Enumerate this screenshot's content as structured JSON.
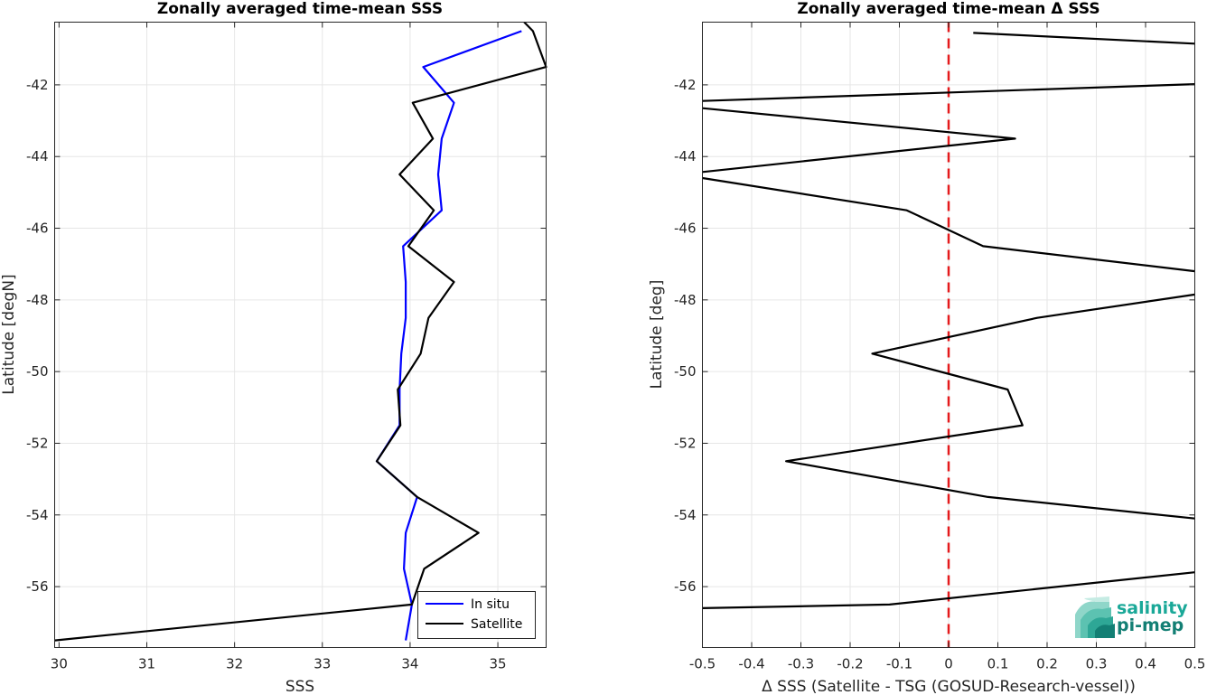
{
  "chart_data": [
    {
      "type": "line",
      "title": "Zonally averaged time-mean SSS",
      "xlabel": "SSS",
      "ylabel": "Latitude [degN]",
      "xlim": [
        29.95,
        35.55
      ],
      "ylim": [
        -57.7,
        -40.25
      ],
      "xticks": [
        30,
        31,
        32,
        33,
        34,
        35
      ],
      "yticks": [
        -56,
        -54,
        -52,
        -50,
        -48,
        -46,
        -44,
        -42
      ],
      "grid": true,
      "legend": "bottom-right",
      "series": [
        {
          "name": "In situ",
          "color": "#0000ff",
          "x": [
            33.95,
            34.02,
            33.93,
            33.95,
            34.08,
            33.62,
            33.88,
            33.88,
            33.9,
            33.95,
            33.95,
            33.92,
            34.36,
            34.32,
            34.36,
            34.5,
            34.15,
            35.27
          ],
          "y": [
            -57.5,
            -56.5,
            -55.5,
            -54.5,
            -53.5,
            -52.5,
            -51.5,
            -50.5,
            -49.5,
            -48.5,
            -47.5,
            -46.5,
            -45.5,
            -44.5,
            -43.5,
            -42.5,
            -41.5,
            -40.5
          ]
        },
        {
          "name": "Satellite",
          "color": "#000000",
          "x": [
            29.95,
            34.02,
            34.16,
            34.78,
            34.08,
            33.62,
            33.89,
            33.86,
            34.12,
            34.21,
            34.5,
            33.98,
            34.27,
            33.88,
            34.26,
            34.03,
            35.55,
            35.4,
            35.3
          ],
          "y": [
            -57.5,
            -56.5,
            -55.5,
            -54.5,
            -53.5,
            -52.5,
            -51.5,
            -50.5,
            -49.5,
            -48.5,
            -47.5,
            -46.5,
            -45.5,
            -44.5,
            -43.5,
            -42.5,
            -41.5,
            -40.5,
            -40.25
          ]
        }
      ]
    },
    {
      "type": "line",
      "title": "Zonally averaged time-mean Δ SSS",
      "xlabel": "Δ SSS (Satellite - TSG (GOSUD-Research-vessel))",
      "ylabel": "Latitude [deg]",
      "xlim": [
        -0.5,
        0.5
      ],
      "ylim": [
        -57.7,
        -40.25
      ],
      "xticks": [
        -0.5,
        -0.4,
        -0.3,
        -0.2,
        -0.1,
        0,
        0.1,
        0.2,
        0.3,
        0.4,
        0.5
      ],
      "xticklabels": [
        "-0.5",
        "-0.4",
        "-0.3",
        "-0.2",
        "-0.1",
        "0",
        "0.1",
        "0.2",
        "0.3",
        "0.4",
        "0.5"
      ],
      "yticks": [
        -56,
        -54,
        -52,
        -50,
        -48,
        -46,
        -44,
        -42
      ],
      "grid": true,
      "reference_line": {
        "x": 0,
        "color": "#e41a1c",
        "style": "dashed"
      },
      "series": [
        {
          "color": "#000000",
          "x": [
            -0.5,
            -0.12,
            0.5
          ],
          "y": [
            -56.6,
            -56.5,
            -55.6
          ]
        },
        {
          "color": "#000000",
          "x": [
            0.5,
            0.08,
            -0.33,
            0.15,
            0.12,
            -0.155,
            0.18,
            0.5
          ],
          "y": [
            -54.1,
            -53.5,
            -52.5,
            -51.5,
            -50.5,
            -49.5,
            -48.5,
            -47.85
          ]
        },
        {
          "color": "#000000",
          "x": [
            0.5,
            0.07,
            -0.085,
            -0.5
          ],
          "y": [
            -47.2,
            -46.5,
            -45.5,
            -44.6
          ]
        },
        {
          "color": "#000000",
          "x": [
            -0.5,
            0.135,
            -0.5
          ],
          "y": [
            -44.43,
            -43.5,
            -42.65
          ]
        },
        {
          "color": "#000000",
          "x": [
            -0.5,
            0.5
          ],
          "y": [
            -42.45,
            -41.98
          ]
        },
        {
          "color": "#000000",
          "x": [
            0.5,
            0.05
          ],
          "y": [
            -40.85,
            -40.55
          ]
        }
      ]
    }
  ],
  "logo": {
    "line1": "salinity",
    "line2": "pi-mep",
    "color": "#1aa898"
  }
}
